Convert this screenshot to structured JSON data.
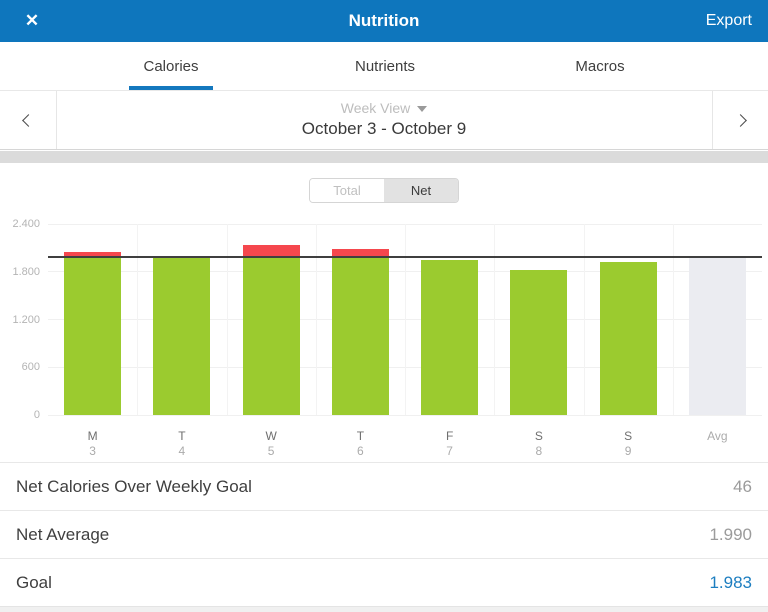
{
  "header": {
    "title": "Nutrition",
    "close_icon": "✕",
    "export_label": "Export"
  },
  "tabs": [
    {
      "label": "Calories",
      "active": true
    },
    {
      "label": "Nutrients",
      "active": false
    },
    {
      "label": "Macros",
      "active": false
    }
  ],
  "week_nav": {
    "view_label": "Week View",
    "date_range": "October 3 - October 9"
  },
  "toggle": {
    "total_label": "Total",
    "net_label": "Net",
    "selected": "Net"
  },
  "chart_data": {
    "type": "bar",
    "title": "Net Calories by Day (Week View)",
    "categories": [
      "M 3",
      "T 4",
      "W 5",
      "T 6",
      "F 7",
      "S 8",
      "S 9",
      "Avg"
    ],
    "x_letters": [
      "M",
      "T",
      "W",
      "T",
      "F",
      "S",
      "S"
    ],
    "x_numbers": [
      "3",
      "4",
      "5",
      "6",
      "7",
      "8",
      "9"
    ],
    "avg_label": "Avg",
    "values": [
      2050,
      1980,
      2130,
      2085,
      1945,
      1820,
      1917
    ],
    "avg_value": 1990,
    "goal_value": 1983,
    "ylim": [
      0,
      2400
    ],
    "yticks": [
      2400,
      1800,
      1200,
      600,
      0
    ],
    "ytick_labels": [
      "2.400",
      "1.800",
      "1.200",
      "600",
      "0"
    ],
    "grid": "horizontal",
    "legend_position": "none",
    "colors": {
      "bar_green": "#9BCB2F",
      "bar_over_red": "#F5474D",
      "bar_avg_gray": "#EBECF1",
      "goal_line": "#3F3F3F"
    }
  },
  "summary": {
    "rows": [
      {
        "label": "Net Calories Over Weekly Goal",
        "value": "46",
        "emphasis": "gray"
      },
      {
        "label": "Net Average",
        "value": "1.990",
        "emphasis": "gray"
      },
      {
        "label": "Goal",
        "value": "1.983",
        "emphasis": "blue"
      }
    ]
  },
  "colors": {
    "header_bg": "#0E76BD",
    "accent_blue": "#1478BE",
    "link_blue": "#1D7EC0"
  }
}
